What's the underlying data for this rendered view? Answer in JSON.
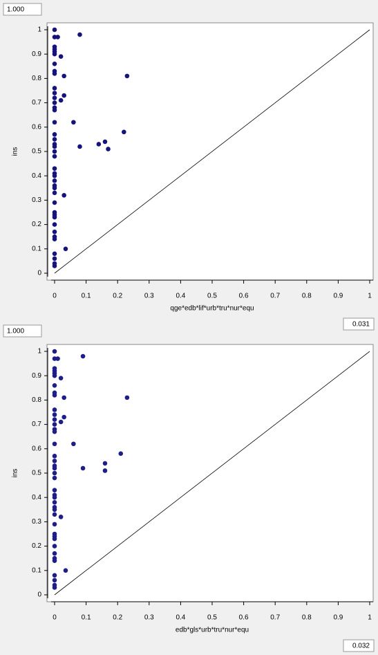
{
  "chart_data": [
    {
      "type": "scatter",
      "corner_labels": [
        "1.000",
        "0.031"
      ],
      "x_label": "qge*edb*lif*urb*tru*nur*equ",
      "y_label": "ins",
      "color": "#14147a",
      "xlim": [
        0,
        1
      ],
      "ylim": [
        0,
        1
      ],
      "xticks": [
        0,
        0.1,
        0.2,
        0.3,
        0.4,
        0.5,
        0.6,
        0.7,
        0.8,
        0.9,
        1
      ],
      "yticks": [
        0,
        0.1,
        0.2,
        0.3,
        0.4,
        0.5,
        0.6,
        0.7,
        0.8,
        0.9,
        1
      ],
      "x": [
        0,
        0,
        0,
        0,
        0,
        0,
        0,
        0,
        0,
        0,
        0,
        0,
        0,
        0,
        0,
        0,
        0,
        0,
        0,
        0,
        0,
        0,
        0,
        0,
        0,
        0,
        0,
        0,
        0,
        0,
        0,
        0,
        0,
        0,
        0,
        0,
        0,
        0,
        0,
        0,
        0,
        0.01,
        0.02,
        0.02,
        0.08,
        0.03,
        0.03,
        0.23,
        0.06,
        0.22,
        0.14,
        0.16,
        0.17,
        0.08,
        0.03,
        0.035
      ],
      "y": [
        1,
        0.97,
        0.93,
        0.92,
        0.91,
        0.9,
        0.86,
        0.83,
        0.82,
        0.76,
        0.74,
        0.72,
        0.7,
        0.68,
        0.67,
        0.62,
        0.57,
        0.55,
        0.53,
        0.52,
        0.5,
        0.48,
        0.43,
        0.41,
        0.4,
        0.38,
        0.36,
        0.35,
        0.33,
        0.29,
        0.25,
        0.24,
        0.23,
        0.2,
        0.17,
        0.15,
        0.14,
        0.08,
        0.06,
        0.04,
        0.03,
        0.97,
        0.89,
        0.71,
        0.98,
        0.81,
        0.73,
        0.81,
        0.62,
        0.58,
        0.53,
        0.54,
        0.51,
        0.52,
        0.32,
        0.1
      ]
    },
    {
      "type": "scatter",
      "corner_labels": [
        "1.000",
        "0.032"
      ],
      "x_label": "edb*gls*urb*tru*nur*equ",
      "y_label": "ins",
      "color": "#1e1e88",
      "xlim": [
        0,
        1
      ],
      "ylim": [
        0,
        1
      ],
      "xticks": [
        0,
        0.1,
        0.2,
        0.3,
        0.4,
        0.5,
        0.6,
        0.7,
        0.8,
        0.9,
        1
      ],
      "yticks": [
        0,
        0.1,
        0.2,
        0.3,
        0.4,
        0.5,
        0.6,
        0.7,
        0.8,
        0.9,
        1
      ],
      "x": [
        0,
        0,
        0,
        0,
        0,
        0,
        0,
        0,
        0,
        0,
        0,
        0,
        0,
        0,
        0,
        0,
        0,
        0,
        0,
        0,
        0,
        0,
        0,
        0,
        0,
        0,
        0,
        0,
        0,
        0,
        0,
        0,
        0,
        0,
        0,
        0,
        0,
        0,
        0,
        0,
        0,
        0.01,
        0.02,
        0.02,
        0.09,
        0.03,
        0.03,
        0.23,
        0.06,
        0.21,
        0.16,
        0.16,
        0.09,
        0.02,
        0.035
      ],
      "y": [
        1,
        0.97,
        0.93,
        0.92,
        0.91,
        0.9,
        0.86,
        0.83,
        0.82,
        0.76,
        0.74,
        0.72,
        0.7,
        0.68,
        0.67,
        0.62,
        0.57,
        0.55,
        0.53,
        0.52,
        0.5,
        0.48,
        0.43,
        0.41,
        0.4,
        0.38,
        0.36,
        0.35,
        0.33,
        0.29,
        0.25,
        0.24,
        0.23,
        0.2,
        0.17,
        0.15,
        0.14,
        0.08,
        0.06,
        0.04,
        0.03,
        0.97,
        0.89,
        0.71,
        0.98,
        0.81,
        0.73,
        0.81,
        0.62,
        0.58,
        0.54,
        0.51,
        0.52,
        0.32,
        0.1
      ]
    }
  ]
}
